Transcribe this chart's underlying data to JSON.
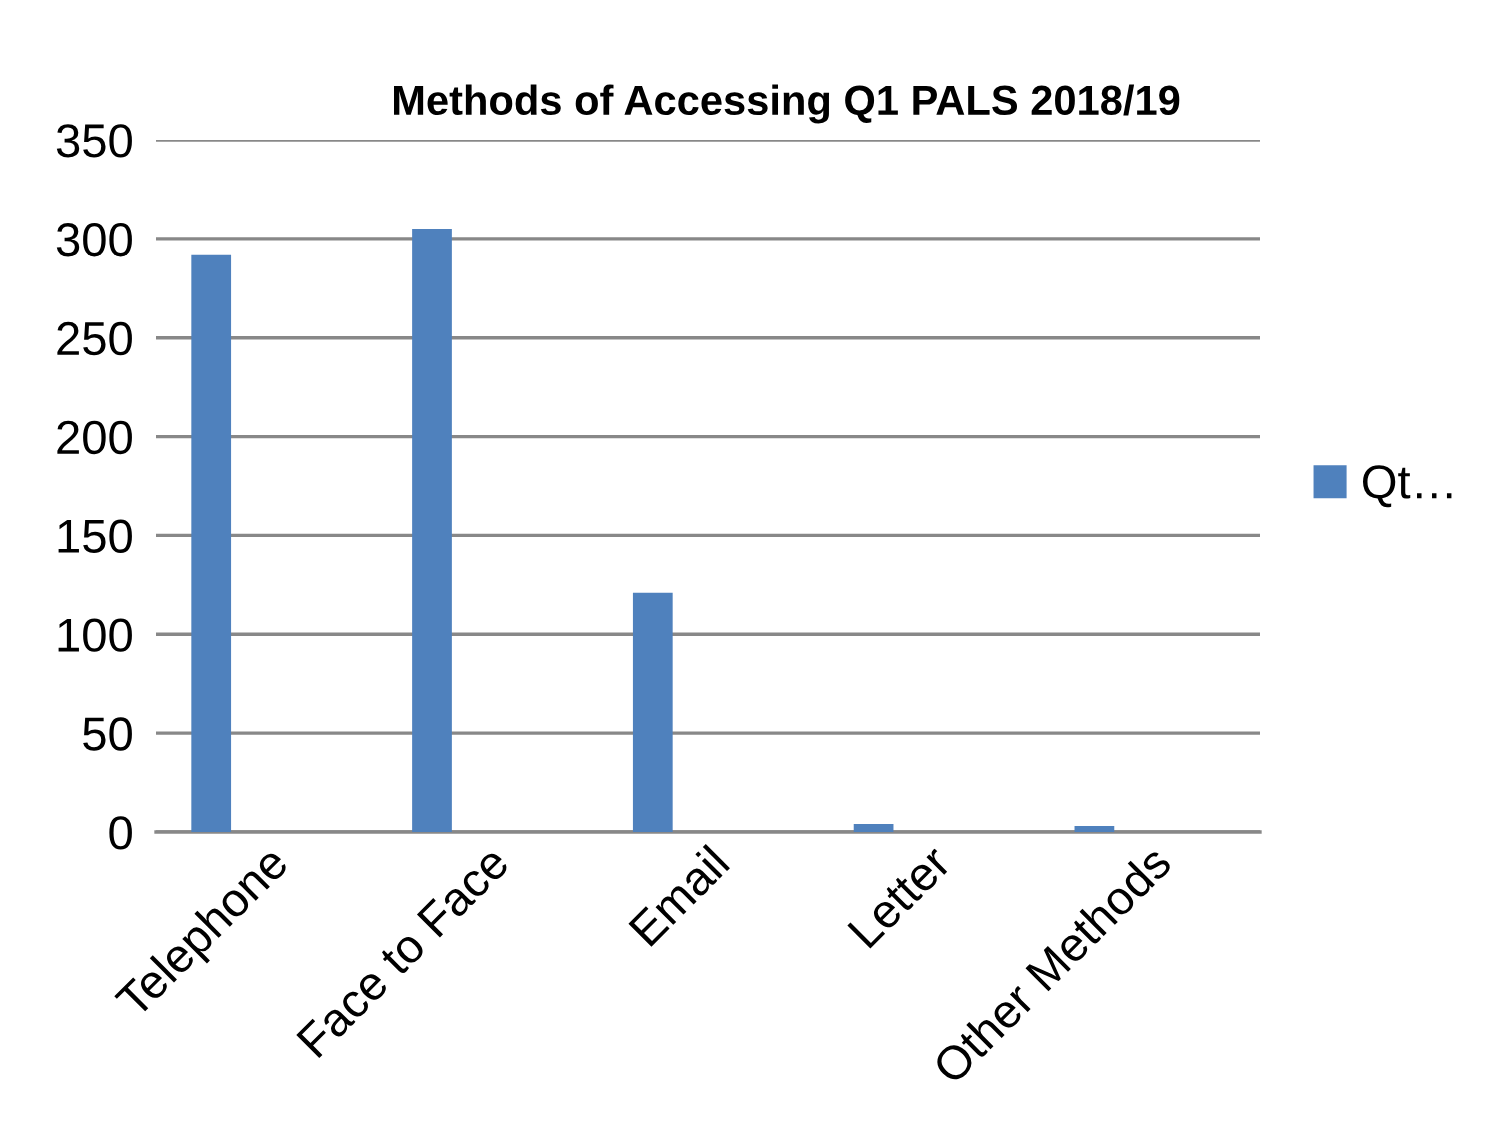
{
  "chart_data": {
    "type": "bar",
    "title": "Methods of Accessing Q1 PALS 2018/19",
    "categories": [
      "Telephone",
      "Face to Face",
      "Email",
      "Letter",
      "Other Methods"
    ],
    "series": [
      {
        "name": "Qt…",
        "color": "#4f81bd",
        "values": [
          292,
          305,
          121,
          4,
          3
        ]
      }
    ],
    "ylim": [
      0,
      350
    ],
    "yticks": [
      0,
      50,
      100,
      150,
      200,
      250,
      300,
      350
    ],
    "grid": "y",
    "legend": "right"
  }
}
